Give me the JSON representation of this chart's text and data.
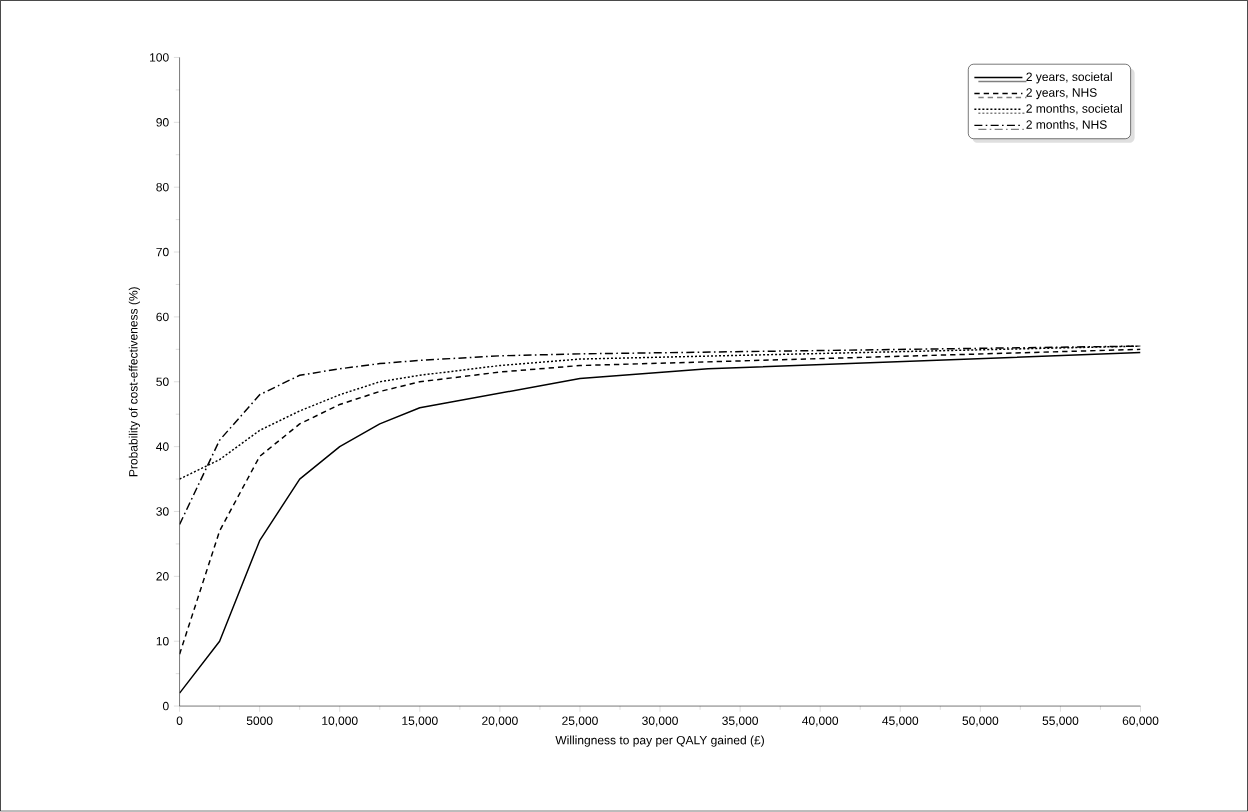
{
  "chart_data": {
    "type": "line",
    "xlabel": "Willingness to pay per QALY gained (£)",
    "ylabel": "Probability of cost-effectiveness (%)",
    "xlim": [
      0,
      60000
    ],
    "ylim": [
      0,
      100
    ],
    "xticks": [
      0,
      5000,
      {
        "value": 10000,
        "label": "10,000"
      },
      {
        "value": 15000,
        "label": "15,000"
      },
      {
        "value": 20000,
        "label": "20,000"
      },
      {
        "value": 25000,
        "label": "25,000"
      },
      {
        "value": 30000,
        "label": "30,000"
      },
      {
        "value": 35000,
        "label": "35,000"
      },
      {
        "value": 40000,
        "label": "40,000"
      },
      {
        "value": 45000,
        "label": "45,000"
      },
      {
        "value": 50000,
        "label": "50,000"
      },
      {
        "value": 55000,
        "label": "55,000"
      },
      {
        "value": 60000,
        "label": "60,000"
      }
    ],
    "yticks": [
      0,
      10,
      20,
      30,
      40,
      50,
      60,
      70,
      80,
      90,
      100
    ],
    "legend": "top right",
    "grid": false,
    "marker": "none",
    "series": [
      {
        "name": "2 years, societal",
        "color": "#000000",
        "line_style": "solid",
        "x": [
          0,
          2500,
          5000,
          7500,
          10000,
          12500,
          15000,
          25000,
          33000,
          60000
        ],
        "values": [
          2,
          10,
          25.5,
          35,
          40,
          43.5,
          46,
          50.5,
          52,
          54.5
        ]
      },
      {
        "name": "2 years, NHS",
        "color": "#000000",
        "line_style": "dashed",
        "x": [
          0,
          2500,
          5000,
          7500,
          10000,
          12500,
          15000,
          20000,
          25000,
          60000
        ],
        "values": [
          8,
          27,
          38.5,
          43.5,
          46.5,
          48.5,
          50,
          51.5,
          52.5,
          55
        ]
      },
      {
        "name": "2 months, societal",
        "color": "#000000",
        "line_style": "dotted",
        "x": [
          0,
          2500,
          5000,
          7500,
          10000,
          12500,
          15000,
          20000,
          25000,
          60000
        ],
        "values": [
          35,
          38,
          42.5,
          45.5,
          48,
          50,
          51,
          52.5,
          53.5,
          55.5
        ]
      },
      {
        "name": "2 months, NHS",
        "color": "#000000",
        "line_style": "dashdot",
        "x": [
          0,
          2500,
          5000,
          7500,
          10000,
          12500,
          15000,
          20000,
          25000,
          60000
        ],
        "values": [
          28,
          41,
          48,
          51,
          52,
          52.8,
          53.3,
          54,
          54.3,
          55.5
        ]
      }
    ]
  }
}
